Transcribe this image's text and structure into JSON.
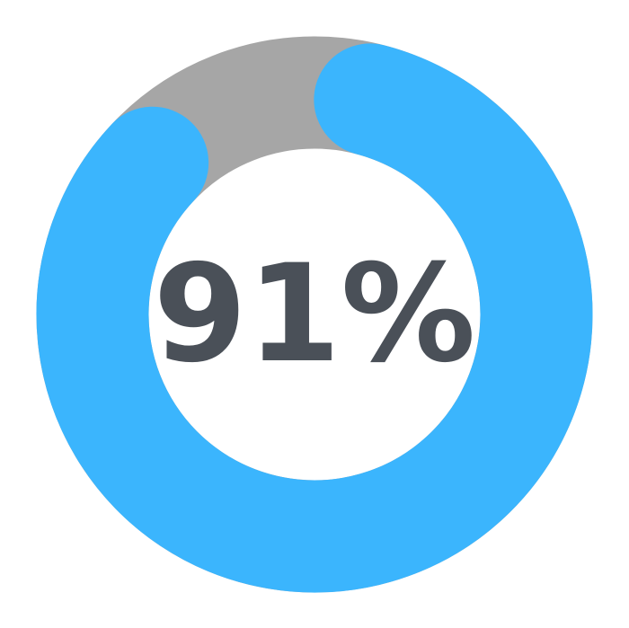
{
  "chart_data": {
    "type": "progress-ring",
    "values": [
      91
    ],
    "value_labels": [
      "91%"
    ],
    "ylim": [
      0,
      100
    ],
    "color": "#3bb5fd",
    "track_color": "#a6a6a6"
  }
}
